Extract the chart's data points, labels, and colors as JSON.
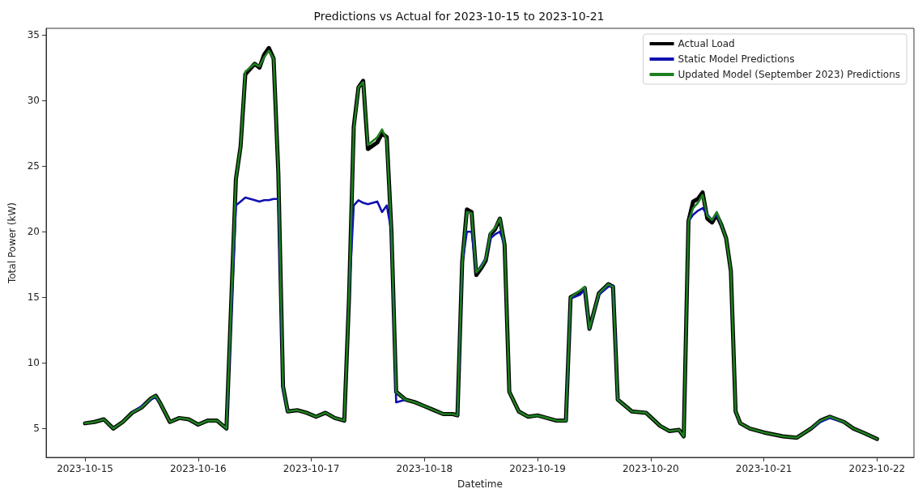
{
  "chart_data": {
    "type": "line",
    "title": "Predictions vs Actual for 2023-10-15 to 2023-10-21",
    "xlabel": "Datetime",
    "ylabel": "Total Power (kW)",
    "x": [
      "2023-10-15T00:00",
      "2023-10-15T02:00",
      "2023-10-15T04:00",
      "2023-10-15T06:00",
      "2023-10-15T08:00",
      "2023-10-15T10:00",
      "2023-10-15T12:00",
      "2023-10-15T14:00",
      "2023-10-15T15:00",
      "2023-10-15T16:00",
      "2023-10-15T18:00",
      "2023-10-15T20:00",
      "2023-10-15T22:00",
      "2023-10-16T00:00",
      "2023-10-16T02:00",
      "2023-10-16T04:00",
      "2023-10-16T06:00",
      "2023-10-16T08:00",
      "2023-10-16T09:00",
      "2023-10-16T10:00",
      "2023-10-16T12:00",
      "2023-10-16T13:00",
      "2023-10-16T14:00",
      "2023-10-16T15:00",
      "2023-10-16T16:00",
      "2023-10-16T17:00",
      "2023-10-16T18:00",
      "2023-10-16T19:00",
      "2023-10-16T21:00",
      "2023-10-16T23:00",
      "2023-10-17T01:00",
      "2023-10-17T03:00",
      "2023-10-17T05:00",
      "2023-10-17T07:00",
      "2023-10-17T08:00",
      "2023-10-17T09:00",
      "2023-10-17T10:00",
      "2023-10-17T11:00",
      "2023-10-17T12:00",
      "2023-10-17T14:00",
      "2023-10-17T15:00",
      "2023-10-17T16:00",
      "2023-10-17T17:00",
      "2023-10-17T18:00",
      "2023-10-17T20:00",
      "2023-10-17T22:00",
      "2023-10-18T00:00",
      "2023-10-18T02:00",
      "2023-10-18T04:00",
      "2023-10-18T06:00",
      "2023-10-18T07:00",
      "2023-10-18T08:00",
      "2023-10-18T09:00",
      "2023-10-18T10:00",
      "2023-10-18T11:00",
      "2023-10-18T12:00",
      "2023-10-18T13:00",
      "2023-10-18T14:00",
      "2023-10-18T15:00",
      "2023-10-18T16:00",
      "2023-10-18T17:00",
      "2023-10-18T18:00",
      "2023-10-18T20:00",
      "2023-10-18T22:00",
      "2023-10-19T00:00",
      "2023-10-19T02:00",
      "2023-10-19T04:00",
      "2023-10-19T06:00",
      "2023-10-19T07:00",
      "2023-10-19T09:00",
      "2023-10-19T10:00",
      "2023-10-19T11:00",
      "2023-10-19T13:00",
      "2023-10-19T15:00",
      "2023-10-19T16:00",
      "2023-10-19T17:00",
      "2023-10-19T20:00",
      "2023-10-19T23:00",
      "2023-10-20T02:00",
      "2023-10-20T04:00",
      "2023-10-20T06:00",
      "2023-10-20T07:00",
      "2023-10-20T08:00",
      "2023-10-20T09:00",
      "2023-10-20T10:00",
      "2023-10-20T11:00",
      "2023-10-20T12:00",
      "2023-10-20T13:00",
      "2023-10-20T14:00",
      "2023-10-20T15:00",
      "2023-10-20T16:00",
      "2023-10-20T17:00",
      "2023-10-20T18:00",
      "2023-10-20T19:00",
      "2023-10-20T21:00",
      "2023-10-21T00:00",
      "2023-10-21T04:00",
      "2023-10-21T07:00",
      "2023-10-21T10:00",
      "2023-10-21T12:00",
      "2023-10-21T14:00",
      "2023-10-21T17:00",
      "2023-10-21T19:00",
      "2023-10-21T21:00",
      "2023-10-22T00:00"
    ],
    "series": [
      {
        "name": "Actual Load",
        "color": "#000000",
        "values": [
          5.4,
          5.5,
          5.7,
          5.0,
          5.5,
          6.2,
          6.6,
          7.3,
          7.5,
          6.9,
          5.5,
          5.8,
          5.7,
          5.3,
          5.6,
          5.6,
          5.0,
          24.0,
          26.5,
          32.0,
          32.8,
          32.5,
          33.5,
          34.0,
          33.2,
          24.5,
          8.2,
          6.3,
          6.4,
          6.2,
          5.9,
          6.2,
          5.8,
          5.6,
          15.0,
          28.0,
          31.0,
          31.5,
          26.3,
          26.8,
          27.5,
          27.2,
          20.0,
          7.8,
          7.2,
          7.0,
          6.7,
          6.4,
          6.1,
          6.1,
          6.0,
          17.7,
          21.7,
          21.5,
          16.7,
          17.2,
          17.8,
          19.8,
          20.2,
          21.0,
          19.0,
          7.8,
          6.3,
          5.9,
          6.0,
          5.8,
          5.6,
          5.6,
          15.0,
          15.4,
          15.7,
          12.6,
          15.3,
          16.0,
          15.8,
          7.2,
          6.3,
          6.2,
          5.2,
          4.8,
          4.9,
          4.4,
          20.8,
          22.3,
          22.5,
          23.0,
          21.0,
          20.7,
          21.3,
          20.5,
          19.5,
          17.0,
          6.3,
          5.4,
          5.0,
          4.7,
          4.4,
          4.3,
          5.0,
          5.6,
          5.9,
          5.5,
          5.0,
          4.7,
          4.2
        ]
      },
      {
        "name": "Static Model Predictions",
        "color": "#1010b0",
        "values": [
          null,
          null,
          null,
          null,
          null,
          6.2,
          6.7,
          7.2,
          7.4,
          6.9,
          null,
          null,
          null,
          null,
          null,
          null,
          5.0,
          22.0,
          22.3,
          22.6,
          22.4,
          22.3,
          22.4,
          22.4,
          22.5,
          22.5,
          8.0,
          6.3,
          null,
          null,
          null,
          null,
          null,
          null,
          15.0,
          22.0,
          22.4,
          22.2,
          22.1,
          22.3,
          21.5,
          22.0,
          20.0,
          7.0,
          7.2,
          null,
          null,
          null,
          null,
          null,
          6.0,
          17.5,
          20.0,
          20.0,
          16.9,
          17.4,
          18.0,
          19.5,
          19.8,
          20.0,
          19.0,
          null,
          null,
          null,
          null,
          null,
          null,
          5.6,
          14.9,
          15.2,
          15.6,
          12.6,
          15.2,
          15.8,
          15.9,
          7.2,
          null,
          null,
          null,
          null,
          null,
          null,
          20.8,
          21.3,
          21.6,
          21.8,
          21.3,
          20.9,
          21.3,
          20.5,
          null,
          null,
          null,
          null,
          null,
          null,
          null,
          null,
          5.0,
          5.5,
          5.8,
          5.5,
          null,
          null,
          null
        ]
      },
      {
        "name": "Updated Model (September 2023) Predictions",
        "color": "#1f7f1f",
        "values": [
          5.4,
          5.5,
          5.7,
          5.0,
          5.5,
          6.2,
          6.6,
          7.3,
          7.5,
          6.9,
          5.5,
          5.8,
          5.7,
          5.3,
          5.6,
          5.6,
          5.0,
          24.0,
          26.5,
          32.2,
          32.8,
          32.6,
          33.3,
          33.8,
          33.2,
          24.5,
          8.2,
          6.3,
          6.4,
          6.2,
          5.9,
          6.2,
          5.8,
          5.6,
          15.0,
          27.8,
          31.0,
          31.4,
          26.6,
          27.2,
          27.8,
          27.0,
          20.0,
          7.8,
          7.2,
          7.0,
          6.7,
          6.4,
          6.1,
          6.1,
          6.0,
          17.7,
          21.5,
          21.4,
          16.9,
          17.3,
          17.9,
          19.9,
          20.3,
          21.0,
          19.0,
          7.8,
          6.3,
          5.9,
          6.0,
          5.8,
          5.6,
          5.6,
          15.0,
          15.5,
          15.8,
          12.6,
          15.3,
          16.0,
          15.8,
          7.2,
          6.3,
          6.2,
          5.2,
          4.8,
          4.9,
          4.4,
          20.8,
          21.8,
          22.2,
          22.8,
          21.2,
          20.9,
          21.5,
          20.5,
          19.5,
          17.0,
          6.3,
          5.4,
          5.0,
          4.7,
          4.4,
          4.3,
          5.0,
          5.6,
          5.9,
          5.5,
          5.0,
          4.7,
          4.2
        ]
      }
    ],
    "xlim": [
      "2023-10-14T15:45",
      "2023-10-22T07:50"
    ],
    "xticks": [
      "2023-10-15",
      "2023-10-16",
      "2023-10-17",
      "2023-10-18",
      "2023-10-19",
      "2023-10-20",
      "2023-10-21",
      "2023-10-22"
    ],
    "ylim": [
      2.8,
      35.5
    ],
    "yticks": [
      5,
      10,
      15,
      20,
      25,
      30,
      35
    ],
    "grid": false,
    "legend": "top right",
    "marker": "none",
    "line_style": "solid"
  }
}
